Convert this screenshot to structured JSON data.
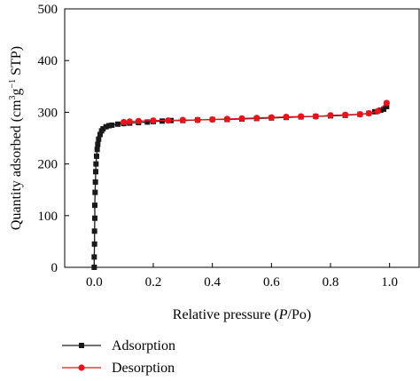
{
  "chart_data": {
    "type": "line",
    "xlabel": {
      "prefix": "Relative pressure (",
      "italic": "P",
      "suffix": "/Po)"
    },
    "ylabel": {
      "prefix": "Quantity adsorbed (cm",
      "sup1": "3",
      "mid": "g",
      "sup2": "−1",
      "suffix": " STP)"
    },
    "xlim": [
      -0.1,
      1.1
    ],
    "ylim": [
      0,
      500
    ],
    "xticks": [
      "0.0",
      "0.2",
      "0.4",
      "0.6",
      "0.8",
      "1.0"
    ],
    "xtick_values": [
      0.0,
      0.2,
      0.4,
      0.6,
      0.8,
      1.0
    ],
    "yticks": [
      "0",
      "100",
      "200",
      "300",
      "400",
      "500"
    ],
    "ytick_values": [
      0,
      100,
      200,
      300,
      400,
      500
    ],
    "grid": false,
    "legend_position": "bottom-left",
    "series": [
      {
        "name": "Adsorption",
        "color": "#1a1a1a",
        "marker": "square",
        "x": [
          0.0,
          0.0,
          0.001,
          0.001,
          0.002,
          0.002,
          0.003,
          0.004,
          0.005,
          0.006,
          0.008,
          0.01,
          0.012,
          0.015,
          0.02,
          0.025,
          0.03,
          0.04,
          0.05,
          0.06,
          0.08,
          0.1,
          0.12,
          0.15,
          0.18,
          0.2,
          0.23,
          0.26,
          0.3,
          0.35,
          0.4,
          0.45,
          0.5,
          0.55,
          0.6,
          0.65,
          0.7,
          0.75,
          0.8,
          0.85,
          0.9,
          0.93,
          0.95,
          0.97,
          0.98,
          0.99
        ],
        "y": [
          0,
          20,
          45,
          70,
          95,
          120,
          145,
          165,
          185,
          200,
          215,
          228,
          238,
          248,
          257,
          264,
          268,
          272,
          274,
          275,
          277,
          278,
          279,
          280,
          281,
          282,
          283,
          284,
          284,
          285,
          286,
          286,
          287,
          288,
          289,
          290,
          291,
          292,
          293,
          294,
          296,
          298,
          301,
          304,
          306,
          311
        ]
      },
      {
        "name": "Desorption",
        "color": "#e8141c",
        "marker": "circle",
        "x": [
          0.99,
          0.96,
          0.93,
          0.9,
          0.85,
          0.8,
          0.75,
          0.7,
          0.65,
          0.6,
          0.55,
          0.5,
          0.45,
          0.4,
          0.35,
          0.3,
          0.25,
          0.2,
          0.15,
          0.12,
          0.1
        ],
        "y": [
          318,
          302,
          298,
          296,
          295,
          294,
          292,
          292,
          291,
          290,
          289,
          288,
          287,
          286,
          285,
          285,
          284,
          284,
          283,
          282,
          281
        ]
      }
    ]
  }
}
